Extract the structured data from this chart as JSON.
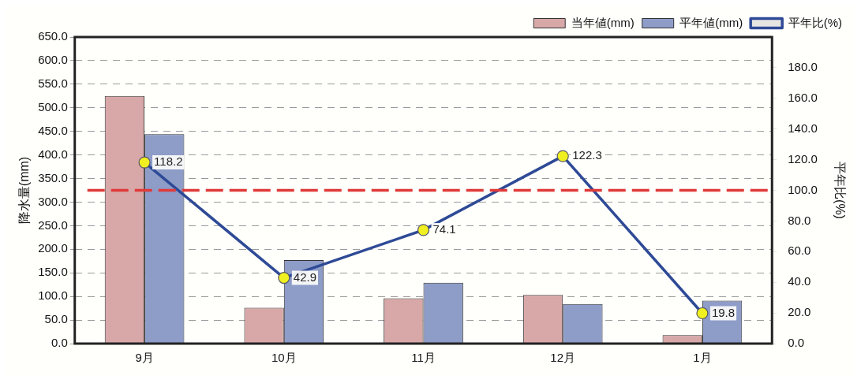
{
  "chart_data": {
    "type": "bar",
    "categories": [
      "9月",
      "10月",
      "11月",
      "12月",
      "1月"
    ],
    "series": [
      {
        "name": "当年値(mm)",
        "color": "#d8a8a8",
        "values": [
          525,
          76,
          96,
          103,
          18
        ]
      },
      {
        "name": "平年値(mm)",
        "color": "#8e9cc8",
        "values": [
          444,
          177,
          129,
          84,
          91
        ]
      },
      {
        "name": "平年比(%)",
        "type": "line",
        "axis": "y2",
        "color": "#2e4a96",
        "marker": "circle",
        "values": [
          118.2,
          42.9,
          74.1,
          122.3,
          19.8
        ],
        "value_labels": [
          "118.2",
          "42.9",
          "74.1",
          "122.3",
          "19.8"
        ]
      }
    ],
    "ylabel": "降水量(mm)",
    "y2label": "平年比(%)",
    "ylim": [
      0,
      650
    ],
    "yticks": [
      {
        "value": 0,
        "label": "0.0"
      },
      {
        "value": 50,
        "label": "50.0"
      },
      {
        "value": 100,
        "label": "100.0"
      },
      {
        "value": 150,
        "label": "150.0"
      },
      {
        "value": 200,
        "label": "200.0"
      },
      {
        "value": 250,
        "label": "250.0"
      },
      {
        "value": 300,
        "label": "300.0"
      },
      {
        "value": 350,
        "label": "350.0"
      },
      {
        "value": 400,
        "label": "400.0"
      },
      {
        "value": 450,
        "label": "450.0"
      },
      {
        "value": 500,
        "label": "500.0"
      },
      {
        "value": 550,
        "label": "550.0"
      },
      {
        "value": 600,
        "label": "600.0"
      },
      {
        "value": 650,
        "label": "650.0"
      }
    ],
    "y2lim": [
      0,
      200
    ],
    "y2ticks": [
      {
        "value": 0,
        "label": "0.0"
      },
      {
        "value": 20,
        "label": "20.0"
      },
      {
        "value": 40,
        "label": "40.0"
      },
      {
        "value": 60,
        "label": "60.0"
      },
      {
        "value": 80,
        "label": "80.0"
      },
      {
        "value": 100,
        "label": "100.0"
      },
      {
        "value": 120,
        "label": "120.0"
      },
      {
        "value": 140,
        "label": "140.0"
      },
      {
        "value": 160,
        "label": "160.0"
      },
      {
        "value": 180,
        "label": "180.0"
      }
    ],
    "ref_lines": [
      {
        "axis": "y2",
        "value": 100,
        "color": "#e03a3a",
        "line_style": "dashed"
      }
    ],
    "grid": "y",
    "legend": "top right"
  }
}
